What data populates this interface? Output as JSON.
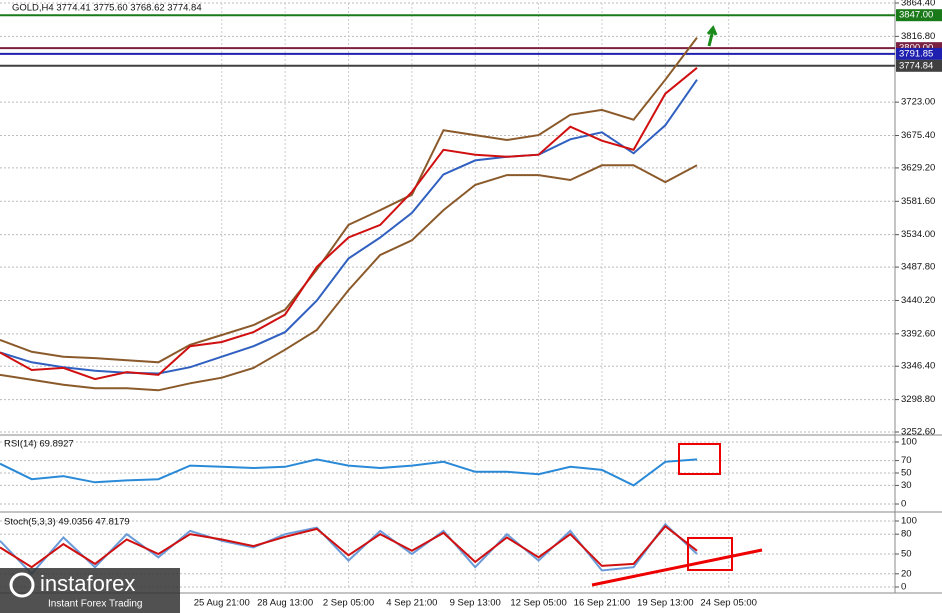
{
  "chart_data": [
    {
      "type": "line",
      "title": "GOLD,H4  3774.41 3775.60 3768.62 3774.84",
      "x": [
        0,
        8,
        16,
        24,
        32,
        40,
        48,
        56,
        64,
        72,
        80,
        88,
        96,
        104,
        112,
        120,
        128,
        136,
        144,
        152,
        160,
        168,
        176
      ],
      "xlim": [
        0,
        226
      ],
      "ylim": [
        3252.6,
        3864.4
      ],
      "yticks": [
        {
          "value": 3864.4,
          "label": "3864.40"
        },
        {
          "value": 3816.8,
          "label": "3816.80"
        },
        {
          "value": 3723,
          "label": "3723.00"
        },
        {
          "value": 3675.4,
          "label": "3675.40"
        },
        {
          "value": 3629.2,
          "label": "3629.20"
        },
        {
          "value": 3581.6,
          "label": "3581.60"
        },
        {
          "value": 3534,
          "label": "3534.00"
        },
        {
          "value": 3487.8,
          "label": "3487.80"
        },
        {
          "value": 3440.2,
          "label": "3440.20"
        },
        {
          "value": 3392.6,
          "label": "3392.60"
        },
        {
          "value": 3346.4,
          "label": "3346.40"
        },
        {
          "value": 3298.8,
          "label": "3298.80"
        },
        {
          "value": 3252.6,
          "label": "3252.60"
        }
      ],
      "grid": true,
      "levels": [
        {
          "value": 3847,
          "label": "3847.00",
          "color": "#1a7a1a"
        },
        {
          "value": 3800,
          "label": "3800.00",
          "color": "#7a2040"
        },
        {
          "value": 3791.85,
          "label": "3791.85",
          "color": "#2020b0"
        },
        {
          "value": 3774.84,
          "label": "3774.84",
          "color": "#404040"
        }
      ],
      "series": [
        {
          "color": "#8b5a2b",
          "values": [
            3384,
            3367,
            3360,
            3358,
            3355,
            3352,
            3377,
            3391,
            3405,
            3427,
            3484,
            3548,
            3569,
            3591,
            3683,
            3676,
            3669,
            3676,
            3705,
            3712,
            3698,
            3755,
            3815
          ]
        },
        {
          "color": "#8b5a2b",
          "values": [
            3334,
            3327,
            3320,
            3315,
            3315,
            3312,
            3322,
            3330,
            3344,
            3370,
            3398,
            3455,
            3505,
            3526,
            3569,
            3605,
            3619,
            3619,
            3612,
            3633,
            3633,
            3609,
            3633
          ]
        },
        {
          "color": "#3060c0",
          "values": [
            3366,
            3352,
            3345,
            3340,
            3337,
            3336,
            3345,
            3360,
            3375,
            3395,
            3440,
            3500,
            3530,
            3565,
            3620,
            3640,
            3645,
            3648,
            3670,
            3680,
            3650,
            3690,
            3755
          ]
        },
        {
          "color": "#d01010",
          "values": [
            3366,
            3341,
            3344,
            3328,
            3338,
            3334,
            3375,
            3381,
            3395,
            3420,
            3488,
            3530,
            3548,
            3595,
            3655,
            3648,
            3645,
            3648,
            3688,
            3668,
            3655,
            3735,
            3772
          ]
        }
      ]
    },
    {
      "type": "line",
      "title": "RSI(14) 69.8927",
      "x": [
        0,
        8,
        16,
        24,
        32,
        40,
        48,
        56,
        64,
        72,
        80,
        88,
        96,
        104,
        112,
        120,
        128,
        136,
        144,
        152,
        160,
        168,
        176
      ],
      "xlim": [
        0,
        226
      ],
      "ylim": [
        0,
        100
      ],
      "yticks": [
        100,
        70,
        50,
        30,
        0
      ],
      "series": [
        {
          "color": "#2a8ad8",
          "values": [
            65,
            40,
            45,
            35,
            38,
            40,
            62,
            60,
            58,
            60,
            72,
            62,
            58,
            62,
            68,
            52,
            52,
            48,
            60,
            55,
            30,
            68,
            72
          ]
        }
      ]
    },
    {
      "type": "line",
      "title": "Stoch(5,3,3) 49.0356 47.8179",
      "x": [
        0,
        8,
        16,
        24,
        32,
        40,
        48,
        56,
        64,
        72,
        80,
        88,
        96,
        104,
        112,
        120,
        128,
        136,
        144,
        152,
        160,
        168,
        176
      ],
      "xlim": [
        0,
        226
      ],
      "ylim": [
        0,
        100
      ],
      "yticks": [
        100,
        80,
        50,
        20,
        0
      ],
      "xticks": [
        {
          "value": 56,
          "label": "25 Aug 21:00"
        },
        {
          "value": 72,
          "label": "28 Aug 13:00"
        },
        {
          "value": 88,
          "label": "2 Sep 05:00"
        },
        {
          "value": 104,
          "label": "4 Sep 21:00"
        },
        {
          "value": 120,
          "label": "9 Sep 13:00"
        },
        {
          "value": 136,
          "label": "12 Sep 05:00"
        },
        {
          "value": 152,
          "label": "16 Sep 21:00"
        },
        {
          "value": 168,
          "label": "19 Sep 13:00"
        },
        {
          "value": 184,
          "label": "24 Sep 05:00"
        }
      ],
      "series": [
        {
          "color": "#6a9ad8",
          "values": [
            70,
            20,
            75,
            30,
            80,
            45,
            85,
            70,
            60,
            80,
            90,
            40,
            85,
            50,
            85,
            30,
            80,
            40,
            85,
            25,
            30,
            95,
            50
          ]
        },
        {
          "color": "#d01010",
          "values": [
            60,
            30,
            65,
            35,
            72,
            50,
            80,
            72,
            62,
            76,
            88,
            48,
            80,
            55,
            82,
            38,
            75,
            45,
            80,
            32,
            35,
            92,
            55
          ]
        }
      ]
    }
  ],
  "watermark": {
    "brand": "instaforex",
    "slogan": "Instant Forex Trading"
  }
}
